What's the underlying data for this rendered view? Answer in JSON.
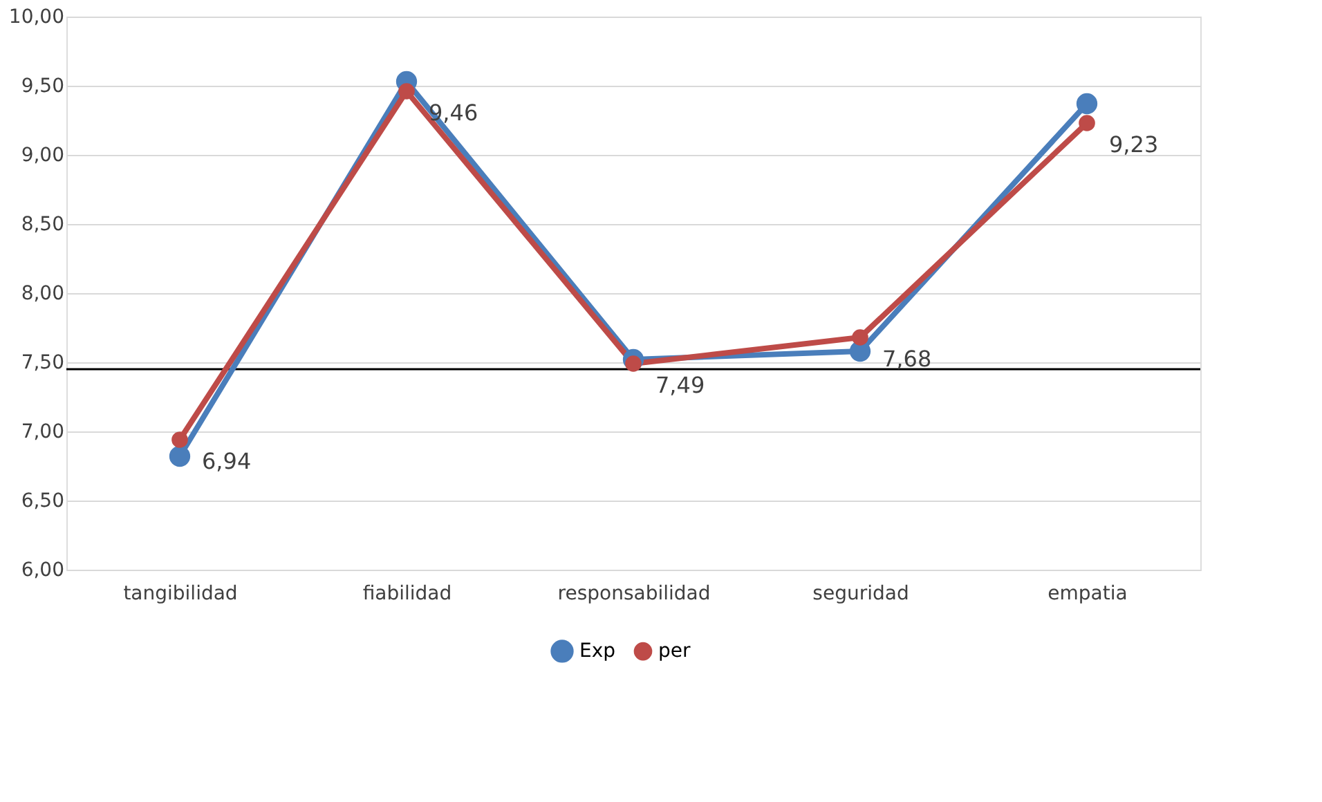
{
  "chart_data": {
    "type": "line",
    "categories": [
      "tangibilidad",
      "fiabilidad",
      "responsabilidad",
      "seguridad",
      "empatia"
    ],
    "series": [
      {
        "name": "Exp",
        "color": "#4a7ebb",
        "values": [
          6.82,
          9.53,
          7.52,
          7.58,
          9.37
        ]
      },
      {
        "name": "per",
        "color": "#be4b48",
        "values": [
          6.94,
          9.46,
          7.49,
          7.68,
          9.23
        ],
        "value_labels": [
          "6,94",
          "9,46",
          "7,49",
          "7,68",
          "9,23"
        ]
      }
    ],
    "ylim": [
      6,
      10
    ],
    "yticks": [
      {
        "value": 6,
        "label": "6,00"
      },
      {
        "value": 6.5,
        "label": "6,50"
      },
      {
        "value": 7,
        "label": "7,00"
      },
      {
        "value": 7.5,
        "label": "7,50"
      },
      {
        "value": 8,
        "label": "8,00"
      },
      {
        "value": 8.5,
        "label": "8,50"
      },
      {
        "value": 9,
        "label": "9,00"
      },
      {
        "value": 9.5,
        "label": "9,50"
      },
      {
        "value": 10,
        "label": "10,00"
      }
    ],
    "ref_lines": [
      {
        "axis": "y",
        "value": 7.45,
        "label": null,
        "color": "#000000"
      }
    ],
    "grid": "y",
    "legend": "bottom",
    "marker": "circle",
    "line_style": "solid"
  }
}
